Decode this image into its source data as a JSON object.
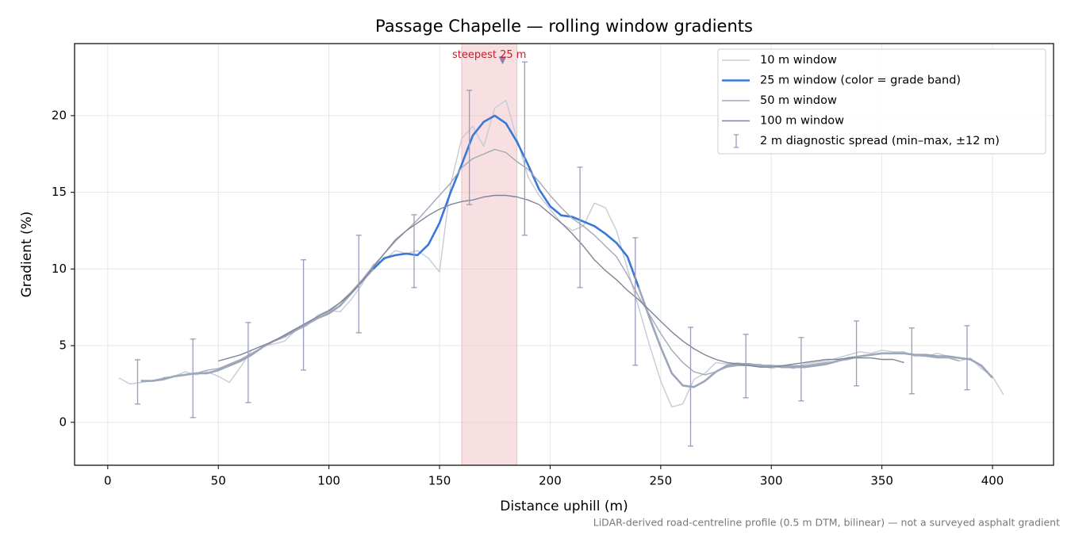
{
  "chart_data": {
    "type": "line",
    "title": "Passage Chapelle — rolling window gradients",
    "xlabel": "Distance uphill (m)",
    "ylabel": "Gradient (%)",
    "footnote": "LiDAR-derived road-centreline profile (0.5 m DTM, bilinear) — not a surveyed asphalt gradient",
    "xlim": [
      -15,
      427.6
    ],
    "ylim": [
      -2.8,
      24.7
    ],
    "xticks": [
      0,
      50,
      100,
      150,
      200,
      250,
      300,
      350,
      400
    ],
    "yticks": [
      0,
      5,
      10,
      15,
      20
    ],
    "grid": true,
    "legend": "upper right",
    "series": [
      {
        "name": "10 m window",
        "color": "#c5cbd6",
        "x": [
          5,
          10,
          15,
          20,
          25,
          30,
          35,
          40,
          45,
          50,
          55,
          60,
          65,
          70,
          75,
          80,
          85,
          90,
          95,
          100,
          105,
          110,
          115,
          120,
          125,
          130,
          135,
          140,
          145,
          150,
          155,
          160,
          165,
          170,
          175,
          180,
          185,
          190,
          195,
          200,
          205,
          210,
          215,
          220,
          225,
          230,
          235,
          240,
          245,
          250,
          255,
          260,
          265,
          270,
          275,
          280,
          285,
          290,
          295,
          300,
          305,
          310,
          315,
          320,
          325,
          330,
          335,
          340,
          345,
          350,
          355,
          360,
          365,
          370,
          375,
          380,
          385,
          390,
          395,
          400,
          405
        ],
        "values": [
          2.9,
          2.5,
          2.6,
          2.7,
          2.9,
          3.0,
          3.3,
          3.1,
          3.3,
          3.0,
          2.6,
          3.6,
          4.7,
          5.0,
          5.1,
          5.3,
          6.0,
          6.3,
          7.0,
          7.3,
          7.2,
          8.0,
          9.0,
          10.3,
          10.6,
          11.2,
          11.0,
          11.2,
          10.7,
          9.8,
          15.5,
          18.5,
          19.3,
          18.0,
          20.5,
          21.0,
          18.5,
          16.0,
          14.8,
          13.9,
          13.0,
          12.5,
          12.8,
          14.3,
          14.0,
          12.5,
          10.0,
          7.5,
          5.0,
          2.7,
          1.0,
          1.2,
          2.8,
          3.2,
          3.9,
          3.8,
          3.9,
          3.7,
          3.8,
          3.5,
          3.7,
          3.5,
          3.8,
          3.9,
          4.0,
          4.2,
          4.4,
          4.6,
          4.5,
          4.7,
          4.6,
          4.6,
          4.3,
          4.3,
          4.5,
          4.3,
          4.0,
          4.2,
          3.5,
          3.0,
          1.8
        ]
      },
      {
        "name": "25 m window (color = grade band)",
        "color": "#3a78d8",
        "width": 2.6,
        "colors": [
          "#9ba7b8",
          "#9ba7b8",
          "#9ba7b8",
          "#9ba7b8",
          "#9ba7b8",
          "#9ba7b8",
          "#9ba7b8",
          "#9ba7b8",
          "#9ba7b8",
          "#9ba7b8",
          "#9ba7b8",
          "#9ba7b8",
          "#9ba7b8",
          "#9ba7b8",
          "#9ba7b8",
          "#9ba7b8",
          "#9ba7b8",
          "#9ba7b8",
          "#9ba7b8",
          "#9ba7b8",
          "#9ba7b8",
          "#3a78d8",
          "#3a78d8",
          "#3a78d8",
          "#3a78d8",
          "#3a78d8",
          "#3a78d8",
          "#3a78d8",
          "#3a78d8",
          "#3a78d8",
          "#3a78d8",
          "#3a78d8",
          "#3a78d8",
          "#3a78d8",
          "#3a78d8",
          "#3a78d8",
          "#3a78d8",
          "#3a78d8",
          "#3a78d8",
          "#3a78d8",
          "#3a78d8",
          "#3a78d8",
          "#3a78d8",
          "#3a78d8",
          "#3a78d8",
          "#9ba7b8",
          "#9ba7b8",
          "#9ba7b8",
          "#9ba7b8",
          "#9ba7b8",
          "#9ba7b8",
          "#9ba7b8",
          "#9ba7b8",
          "#9ba7b8",
          "#9ba7b8",
          "#9ba7b8",
          "#9ba7b8",
          "#9ba7b8",
          "#9ba7b8",
          "#9ba7b8",
          "#9ba7b8",
          "#9ba7b8",
          "#9ba7b8",
          "#9ba7b8",
          "#9ba7b8",
          "#9ba7b8",
          "#9ba7b8",
          "#9ba7b8",
          "#9ba7b8",
          "#9ba7b8",
          "#9ba7b8",
          "#9ba7b8",
          "#9ba7b8",
          "#9ba7b8",
          "#9ba7b8",
          "#9ba7b8",
          "#9ba7b8",
          "#9ba7b8"
        ],
        "x": [
          15,
          20,
          25,
          30,
          35,
          40,
          45,
          50,
          55,
          60,
          65,
          70,
          75,
          80,
          85,
          90,
          95,
          100,
          105,
          110,
          115,
          120,
          125,
          130,
          135,
          140,
          145,
          150,
          155,
          160,
          165,
          170,
          175,
          180,
          185,
          190,
          195,
          200,
          205,
          210,
          215,
          220,
          225,
          230,
          235,
          240,
          245,
          250,
          255,
          260,
          265,
          270,
          275,
          280,
          285,
          290,
          295,
          300,
          305,
          310,
          315,
          320,
          325,
          330,
          335,
          340,
          345,
          350,
          355,
          360,
          365,
          370,
          375,
          380,
          385,
          390,
          395,
          400
        ],
        "values": [
          2.7,
          2.7,
          2.8,
          3.0,
          3.1,
          3.2,
          3.2,
          3.4,
          3.7,
          4.0,
          4.4,
          4.9,
          5.3,
          5.6,
          6.0,
          6.4,
          6.8,
          7.1,
          7.6,
          8.4,
          9.2,
          10.0,
          10.7,
          10.9,
          11.0,
          10.9,
          11.6,
          13.0,
          15.0,
          16.8,
          18.7,
          19.6,
          20.0,
          19.5,
          18.3,
          16.8,
          15.2,
          14.1,
          13.5,
          13.4,
          13.1,
          12.8,
          12.3,
          11.7,
          10.8,
          8.8,
          6.8,
          4.9,
          3.2,
          2.4,
          2.3,
          2.7,
          3.3,
          3.7,
          3.8,
          3.8,
          3.7,
          3.7,
          3.6,
          3.6,
          3.6,
          3.7,
          3.8,
          4.0,
          4.2,
          4.3,
          4.4,
          4.5,
          4.5,
          4.5,
          4.4,
          4.4,
          4.3,
          4.3,
          4.2,
          4.1,
          3.7,
          2.9
        ]
      },
      {
        "name": "50 m window",
        "color": "#a2a9ba",
        "x": [
          25,
          30,
          35,
          40,
          45,
          50,
          55,
          60,
          65,
          70,
          75,
          80,
          85,
          90,
          95,
          100,
          105,
          110,
          115,
          120,
          125,
          130,
          135,
          140,
          145,
          150,
          155,
          160,
          165,
          170,
          175,
          180,
          185,
          190,
          195,
          200,
          205,
          210,
          215,
          220,
          225,
          230,
          235,
          240,
          245,
          250,
          255,
          260,
          265,
          270,
          275,
          280,
          285,
          290,
          295,
          300,
          305,
          310,
          315,
          320,
          325,
          330,
          335,
          340,
          345,
          350,
          355,
          360,
          365,
          370,
          375,
          380,
          385
        ],
        "values": [
          2.9,
          3.0,
          3.1,
          3.2,
          3.4,
          3.5,
          3.8,
          4.1,
          4.5,
          4.9,
          5.3,
          5.7,
          6.1,
          6.4,
          6.8,
          7.2,
          7.8,
          8.5,
          9.3,
          10.2,
          11.0,
          11.8,
          12.5,
          13.2,
          14.0,
          14.8,
          15.6,
          16.6,
          17.2,
          17.5,
          17.8,
          17.6,
          17.0,
          16.5,
          15.7,
          14.8,
          14.0,
          13.3,
          12.8,
          12.2,
          11.5,
          10.8,
          9.6,
          8.2,
          7.0,
          5.8,
          4.7,
          3.9,
          3.3,
          3.1,
          3.3,
          3.6,
          3.7,
          3.7,
          3.7,
          3.7,
          3.7,
          3.7,
          3.7,
          3.8,
          3.9,
          4.0,
          4.1,
          4.3,
          4.4,
          4.5,
          4.5,
          4.5,
          4.4,
          4.3,
          4.2,
          4.2,
          4.0
        ]
      },
      {
        "name": "100 m window",
        "color": "#7f8598",
        "x": [
          50,
          55,
          60,
          65,
          70,
          75,
          80,
          85,
          90,
          95,
          100,
          105,
          110,
          115,
          120,
          125,
          130,
          135,
          140,
          145,
          150,
          155,
          160,
          165,
          170,
          175,
          180,
          185,
          190,
          195,
          200,
          205,
          210,
          215,
          220,
          225,
          230,
          235,
          240,
          245,
          250,
          255,
          260,
          265,
          270,
          275,
          280,
          285,
          290,
          295,
          300,
          305,
          310,
          315,
          320,
          325,
          330,
          335,
          340,
          345,
          350,
          355,
          360
        ],
        "values": [
          4.0,
          4.2,
          4.4,
          4.7,
          5.0,
          5.3,
          5.7,
          6.1,
          6.5,
          6.9,
          7.3,
          7.8,
          8.4,
          9.2,
          10.1,
          11.0,
          11.9,
          12.5,
          13.0,
          13.5,
          13.9,
          14.2,
          14.4,
          14.5,
          14.7,
          14.8,
          14.8,
          14.7,
          14.5,
          14.2,
          13.6,
          13.0,
          12.3,
          11.5,
          10.6,
          9.9,
          9.3,
          8.6,
          8.0,
          7.3,
          6.6,
          5.9,
          5.3,
          4.8,
          4.4,
          4.1,
          3.9,
          3.8,
          3.7,
          3.6,
          3.6,
          3.7,
          3.8,
          3.9,
          4.0,
          4.1,
          4.1,
          4.2,
          4.2,
          4.2,
          4.1,
          4.1,
          3.9
        ]
      }
    ],
    "spread": {
      "name": "2 m diagnostic spread (min–max, ±12 m)",
      "color": "#9c9abb",
      "x": [
        13.5,
        38.5,
        63.5,
        88.5,
        113.5,
        138.5,
        163.5,
        188.5,
        213.5,
        238.5,
        263.5,
        288.5,
        313.5,
        338.5,
        363.5,
        388.5
      ],
      "low": [
        1.19,
        0.31,
        1.29,
        3.41,
        5.84,
        8.79,
        14.2,
        12.2,
        8.79,
        3.72,
        -1.55,
        1.6,
        1.4,
        2.38,
        1.86,
        2.12
      ],
      "high": [
        4.08,
        5.43,
        6.51,
        10.6,
        12.2,
        13.54,
        21.65,
        23.5,
        16.64,
        12.04,
        6.2,
        5.74,
        5.53,
        6.61,
        6.15,
        6.3
      ]
    },
    "highlight": {
      "x": [
        160,
        185
      ],
      "color": "#f2c4ca",
      "label": "steepest 25 m",
      "label_color": "#c0202e",
      "marker": {
        "x": 178.5,
        "y": 23.6,
        "color": "#8a86a8"
      }
    }
  }
}
